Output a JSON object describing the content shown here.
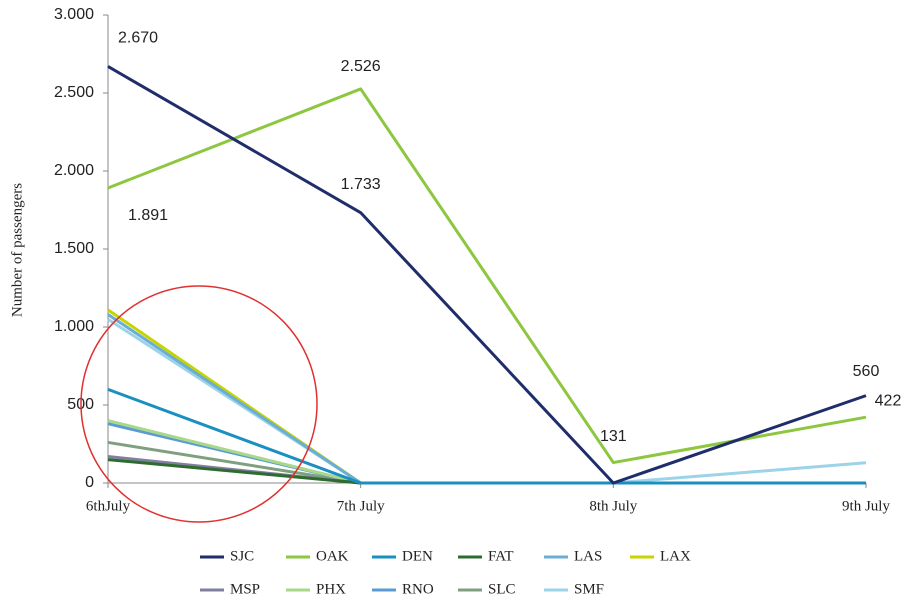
{
  "chart_data": {
    "type": "line",
    "y_label": "Number of  passengers",
    "categories": [
      "6thJuly",
      "7th July",
      "8th July",
      "9th July"
    ],
    "ylim": [
      0,
      3000
    ],
    "yticks": [
      0,
      500,
      {
        "value": 1000,
        "label": "1.000"
      },
      {
        "value": 1500,
        "label": "1.500"
      },
      {
        "value": 2000,
        "label": "2.000"
      },
      {
        "value": 2500,
        "label": "2.500"
      },
      {
        "value": 3000,
        "label": "3.000"
      }
    ],
    "series": [
      {
        "name": "SJC",
        "color": "#1f2d6b",
        "values": [
          2670,
          1733,
          0,
          560
        ],
        "value_labels": [
          "2.670",
          "1.733",
          null,
          "560"
        ]
      },
      {
        "name": "OAK",
        "color": "#8dc63f",
        "values": [
          1891,
          2526,
          131,
          422
        ],
        "value_labels": [
          "1.891",
          "2.526",
          "131",
          "422"
        ]
      },
      {
        "name": "DEN",
        "color": "#1a8fc1",
        "values": [
          600,
          0,
          0,
          0
        ]
      },
      {
        "name": "FAT",
        "color": "#2e6b2e",
        "values": [
          150,
          0,
          0,
          0
        ]
      },
      {
        "name": "LAS",
        "color": "#6aaed6",
        "values": [
          1080,
          0,
          0,
          0
        ]
      },
      {
        "name": "LAX",
        "color": "#c8d400",
        "values": [
          1110,
          0,
          0,
          0
        ]
      },
      {
        "name": "MSP",
        "color": "#7f7f9f",
        "values": [
          170,
          0,
          0,
          0
        ]
      },
      {
        "name": "PHX",
        "color": "#a8d88a",
        "values": [
          400,
          0,
          0,
          0
        ]
      },
      {
        "name": "RNO",
        "color": "#5b9bd5",
        "values": [
          380,
          0,
          0,
          0
        ]
      },
      {
        "name": "SLC",
        "color": "#7fa07f",
        "values": [
          260,
          0,
          0,
          0
        ]
      },
      {
        "name": "SMF",
        "color": "#9dd3e8",
        "values": [
          1050,
          0,
          0,
          130
        ]
      }
    ]
  }
}
